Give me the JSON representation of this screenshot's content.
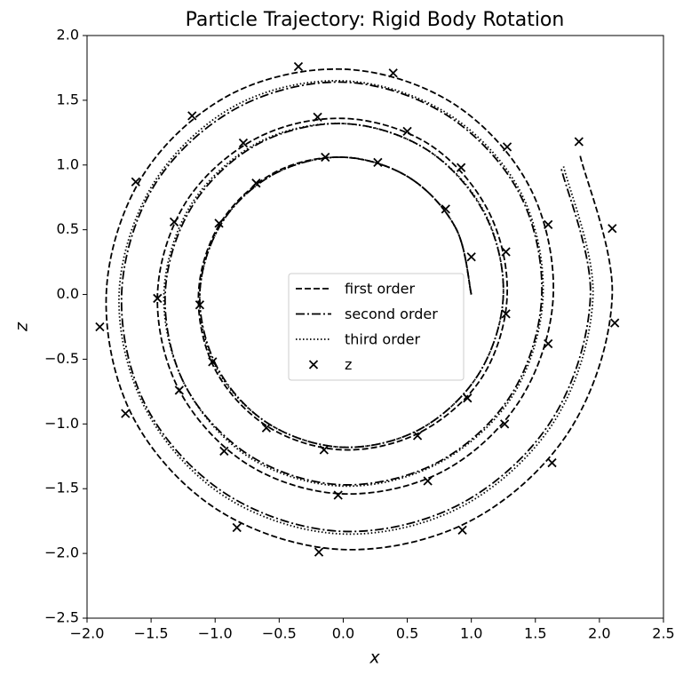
{
  "chart_data": {
    "type": "line",
    "title": "Particle Trajectory: Rigid Body Rotation",
    "x_label": "x",
    "y_label": "z",
    "xlim": [
      -2,
      2.5
    ],
    "ylim": [
      -2.5,
      2
    ],
    "xticks": [
      {
        "value": -2,
        "label": "−2.0"
      },
      {
        "value": -1.5,
        "label": "−1.5"
      },
      {
        "value": -1,
        "label": "−1.0"
      },
      {
        "value": -0.5,
        "label": "−0.5"
      },
      {
        "value": 0,
        "label": "0.0"
      },
      {
        "value": 0.5,
        "label": "0.5"
      },
      {
        "value": 1,
        "label": "1.0"
      },
      {
        "value": 1.5,
        "label": "1.5"
      },
      {
        "value": 2,
        "label": "2.0"
      },
      {
        "value": 2.5,
        "label": "2.5"
      }
    ],
    "yticks": [
      {
        "value": -2.5,
        "label": "−2.5"
      },
      {
        "value": -2,
        "label": "−2.0"
      },
      {
        "value": -1.5,
        "label": "−1.5"
      },
      {
        "value": -1,
        "label": "−1.0"
      },
      {
        "value": -0.5,
        "label": "−0.5"
      },
      {
        "value": 0,
        "label": "0.0"
      },
      {
        "value": 0.5,
        "label": "0.5"
      },
      {
        "value": 1,
        "label": "1.0"
      },
      {
        "value": 1.5,
        "label": "1.5"
      },
      {
        "value": 2,
        "label": "2.0"
      }
    ],
    "legend": "center",
    "series": [
      {
        "name": "first order",
        "type": "line",
        "style": "dashed",
        "color": "#000000",
        "x": [
          1.0,
          0.88,
          0.52,
          0.0,
          -0.54,
          -0.96,
          -1.13,
          -1.0,
          -0.59,
          0.0,
          0.61,
          1.09,
          1.28,
          1.13,
          0.67,
          0.0,
          -0.69,
          -1.23,
          -1.45,
          -1.28,
          -0.75,
          0.0,
          0.79,
          1.39,
          1.64,
          1.45,
          0.85,
          0.0,
          -0.89,
          -1.57,
          -1.85,
          -1.64,
          -0.97,
          0.0,
          1.01,
          1.78,
          2.1,
          1.85
        ],
        "values": [
          0.0,
          0.51,
          0.9,
          1.06,
          0.94,
          0.55,
          0.0,
          -0.58,
          -1.02,
          -1.2,
          -1.06,
          -0.63,
          0.0,
          0.65,
          1.16,
          1.36,
          1.2,
          0.71,
          0.0,
          -0.74,
          -1.31,
          -1.54,
          -1.36,
          -0.8,
          0.0,
          0.84,
          1.48,
          1.74,
          1.54,
          0.91,
          0.0,
          -0.95,
          -1.67,
          -1.97,
          -1.74,
          -1.03,
          0.0,
          1.07
        ]
      },
      {
        "name": "second order",
        "type": "line",
        "style": "dashdot",
        "color": "#000000",
        "x": [
          1.0,
          0.88,
          0.52,
          0.0,
          -0.54,
          -0.95,
          -1.12,
          -0.98,
          -0.58,
          0.0,
          0.6,
          1.06,
          1.25,
          1.1,
          0.65,
          0.0,
          -0.67,
          -1.18,
          -1.39,
          -1.23,
          -0.72,
          0.0,
          0.75,
          1.32,
          1.55,
          1.37,
          0.8,
          0.0,
          -0.83,
          -1.47,
          -1.73,
          -1.53,
          -0.9,
          0.0,
          0.93,
          1.64,
          1.93,
          1.7
        ],
        "values": [
          0.0,
          0.51,
          0.9,
          1.06,
          0.93,
          0.55,
          0.0,
          -0.57,
          -1.0,
          -1.18,
          -1.04,
          -0.61,
          0.0,
          0.63,
          1.12,
          1.32,
          1.16,
          0.68,
          0.0,
          -0.71,
          -1.25,
          -1.47,
          -1.29,
          -0.76,
          0.0,
          0.79,
          1.39,
          1.64,
          1.44,
          0.85,
          0.0,
          -0.88,
          -1.55,
          -1.83,
          -1.61,
          -0.95,
          0.0,
          0.98
        ]
      },
      {
        "name": "third order",
        "type": "line",
        "style": "dotted",
        "color": "#000000",
        "x": [
          1.0,
          0.88,
          0.52,
          0.0,
          -0.54,
          -0.95,
          -1.12,
          -0.99,
          -0.58,
          0.0,
          0.6,
          1.06,
          1.25,
          1.1,
          0.65,
          0.0,
          -0.67,
          -1.19,
          -1.4,
          -1.23,
          -0.73,
          0.0,
          0.75,
          1.33,
          1.56,
          1.38,
          0.81,
          0.0,
          -0.84,
          -1.48,
          -1.75,
          -1.54,
          -0.91,
          0.0,
          0.94,
          1.66,
          1.95,
          1.72
        ],
        "values": [
          0.0,
          0.51,
          0.9,
          1.06,
          0.93,
          0.55,
          0.0,
          -0.57,
          -1.0,
          -1.18,
          -1.04,
          -0.61,
          0.0,
          0.64,
          1.12,
          1.32,
          1.17,
          0.69,
          0.0,
          -0.71,
          -1.26,
          -1.48,
          -1.3,
          -0.77,
          0.0,
          0.8,
          1.4,
          1.65,
          1.46,
          0.86,
          0.0,
          -0.89,
          -1.57,
          -1.85,
          -1.63,
          -0.96,
          0.0,
          0.99
        ]
      },
      {
        "name": "z",
        "type": "scatter",
        "marker": "x",
        "color": "#000000",
        "x": [
          1.0,
          0.8,
          0.27,
          -0.14,
          -0.68,
          -0.97,
          -1.12,
          -1.02,
          -0.6,
          -0.15,
          0.58,
          0.97,
          1.27,
          1.27,
          0.92,
          0.5,
          -0.2,
          -0.78,
          -1.32,
          -1.45,
          -1.28,
          -0.93,
          -0.04,
          0.66,
          1.26,
          1.6,
          1.6,
          1.28,
          0.39,
          -0.35,
          -1.18,
          -1.62,
          -1.9,
          -1.7,
          -0.83,
          -0.19,
          0.93,
          1.63,
          2.12,
          2.1,
          1.84
        ],
        "values": [
          0.29,
          0.66,
          1.02,
          1.06,
          0.86,
          0.55,
          -0.08,
          -0.52,
          -1.03,
          -1.2,
          -1.09,
          -0.8,
          -0.15,
          0.33,
          0.98,
          1.26,
          1.37,
          1.17,
          0.56,
          -0.03,
          -0.74,
          -1.21,
          -1.55,
          -1.44,
          -1.0,
          -0.38,
          0.54,
          1.14,
          1.71,
          1.76,
          1.38,
          0.87,
          -0.25,
          -0.92,
          -1.8,
          -1.99,
          -1.82,
          -1.3,
          -0.22,
          0.51,
          1.18
        ]
      }
    ]
  }
}
